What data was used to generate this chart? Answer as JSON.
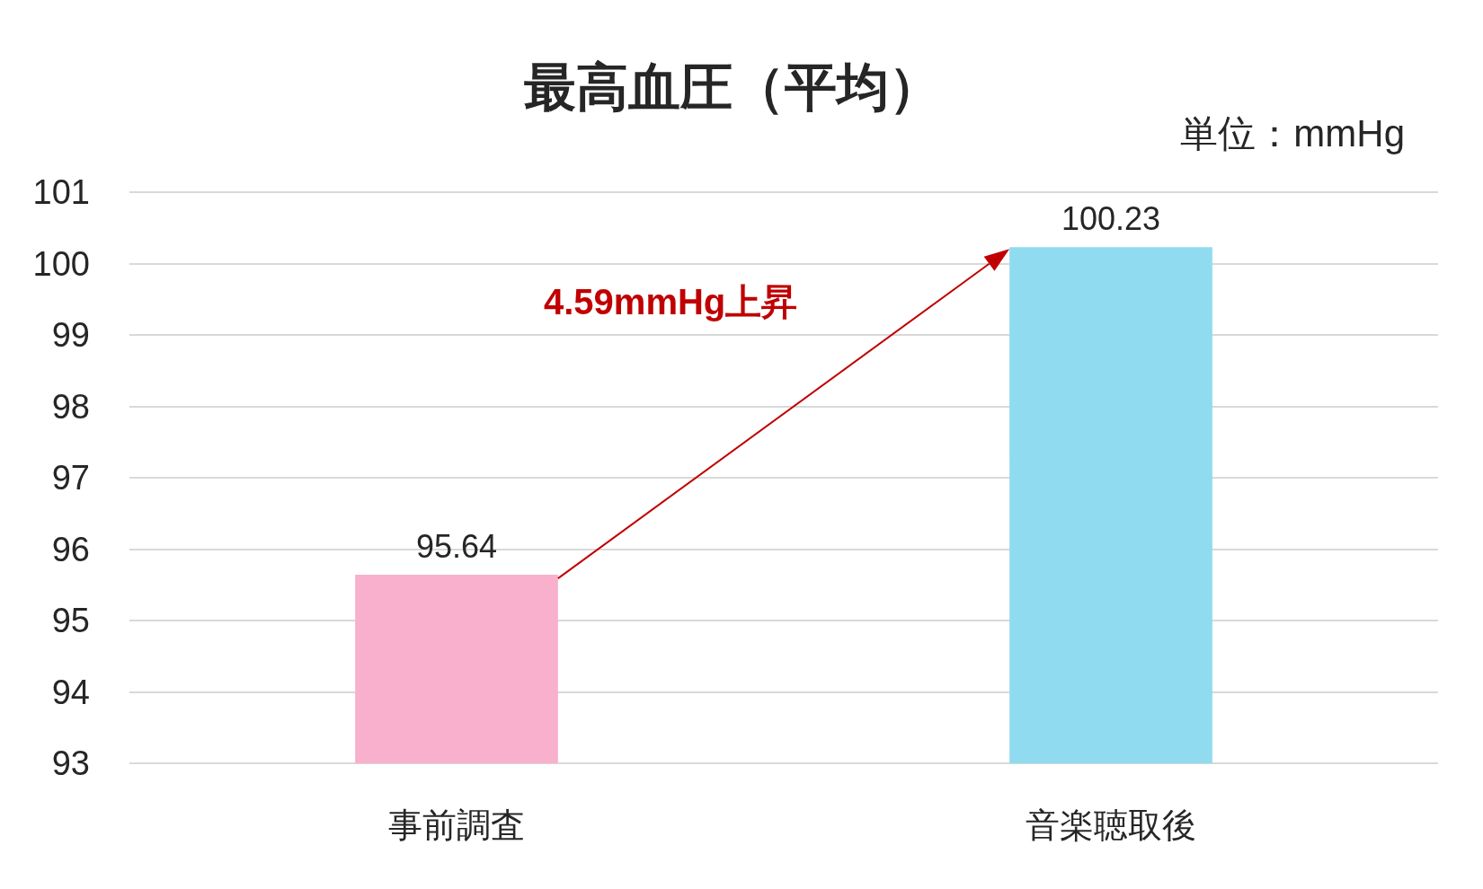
{
  "chart_data": {
    "type": "bar",
    "title": "最高血圧（平均）",
    "ylabel": "単位：mmHg",
    "categories": [
      "事前調査",
      "音楽聴取後"
    ],
    "values": [
      95.64,
      100.23
    ],
    "colors": [
      "#f9b0cc",
      "#90dbf0"
    ],
    "ylim": [
      93,
      101
    ],
    "yticks": [
      93,
      94,
      95,
      96,
      97,
      98,
      99,
      100,
      101
    ],
    "grid": "y",
    "data_labels": true,
    "annotations": [
      "4.59mmHg上昇"
    ]
  }
}
